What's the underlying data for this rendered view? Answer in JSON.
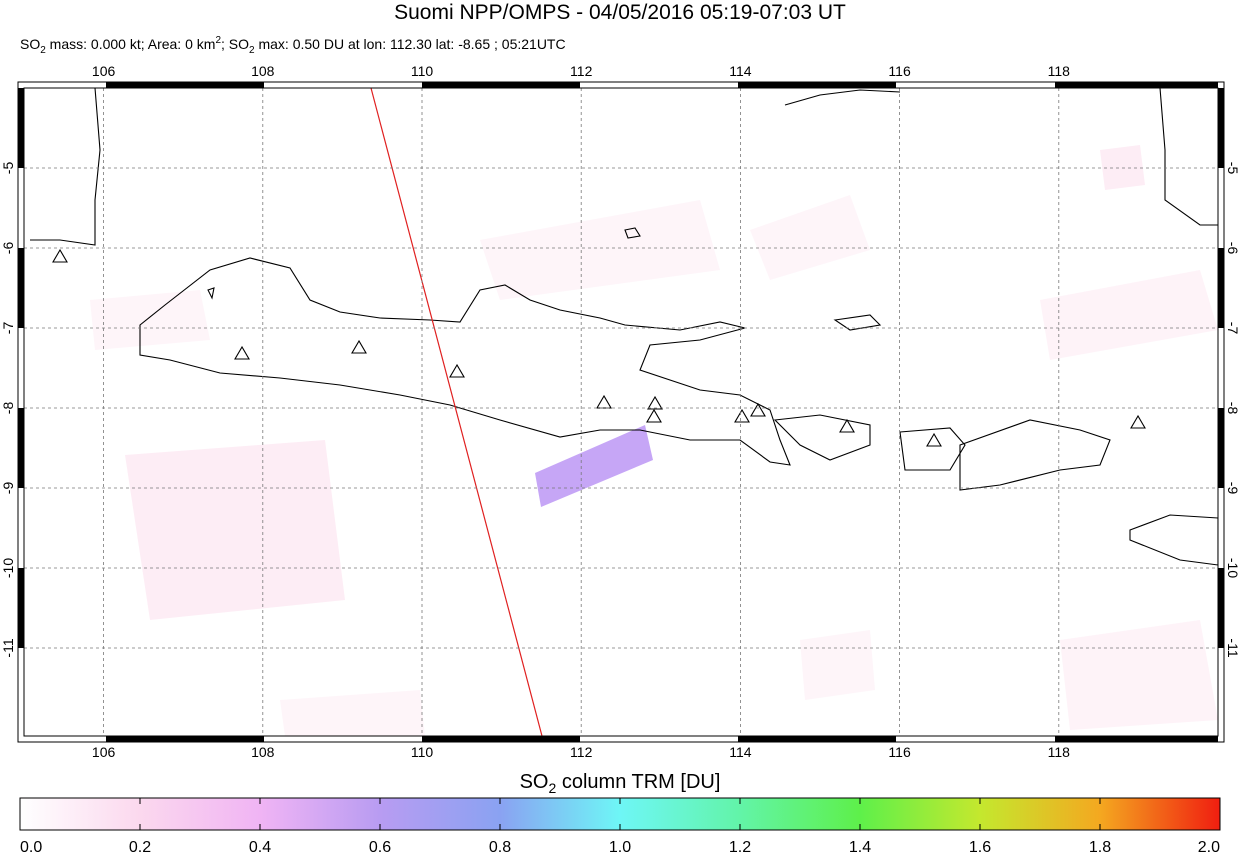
{
  "map": {
    "title": "Suomi NPP/OMPS - 04/05/2016 05:19-07:03 UT",
    "subtitle": [
      "SO",
      "2",
      " mass: 0.000 kt; Area: 0 km",
      "2",
      "; SO",
      "2",
      " max: 0.50 DU at lon: 112.30 lat: -8.65 ; 05:21UTC"
    ],
    "lonlim": [
      105,
      120
    ],
    "latlim": [
      -4,
      -12.1
    ],
    "lonticks": [
      106,
      108,
      110,
      112,
      114,
      116,
      118
    ],
    "latticks": [
      -5,
      -6,
      -7,
      -8,
      -9,
      -10,
      -11
    ],
    "colorbar": {
      "label": [
        "SO",
        "2",
        " column TRM [DU]"
      ],
      "lim": [
        0,
        2
      ],
      "ticks": [
        {
          "value": 0,
          "label": "0.0"
        },
        {
          "value": 0.2,
          "label": "0.2"
        },
        {
          "value": 0.4,
          "label": "0.4"
        },
        {
          "value": 0.6,
          "label": "0.6"
        },
        {
          "value": 0.8,
          "label": "0.8"
        },
        {
          "value": 1,
          "label": "1.0"
        },
        {
          "value": 1.2,
          "label": "1.2"
        },
        {
          "value": 1.4,
          "label": "1.4"
        },
        {
          "value": 1.6,
          "label": "1.6"
        },
        {
          "value": 1.8,
          "label": "1.8"
        },
        {
          "value": 2,
          "label": "2.0"
        }
      ]
    }
  }
}
